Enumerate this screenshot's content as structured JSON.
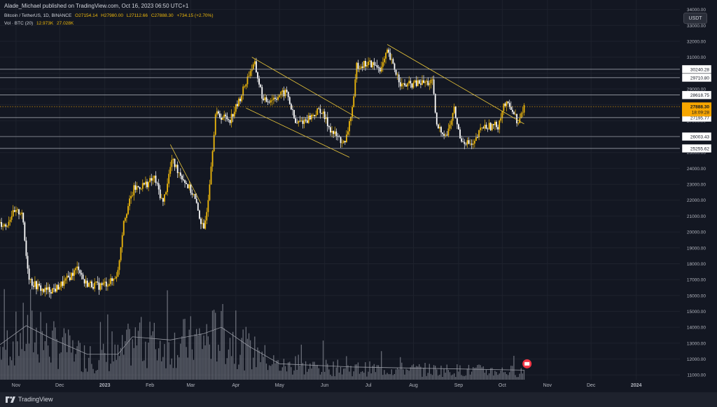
{
  "header": {
    "publisher": "Alade_Michael published on TradingView.com, Oct 16, 2023 06:50 UTC+1",
    "symbol": "Bitcoin / TetherUS, 1D, BINANCE",
    "ohlc": {
      "open": "O27154.14",
      "high": "H27980.00",
      "low": "L27112.66",
      "close": "C27888.30",
      "change": "+734.15 (+2.70%)"
    },
    "volume_label": "Vol · BTC (20)",
    "volume_value": "12.973K",
    "volume_ma": "27.028K"
  },
  "currency_button": "USDT",
  "footer_brand": "TradingView",
  "colors": {
    "background": "#131722",
    "candle_up": "#f0b90b",
    "candle_down": "#ffffff",
    "level_line": "#b2b5be",
    "trend_line": "#e8c53a",
    "price_badge": "#f7a600",
    "volume_bar": "#787b86",
    "volume_ma": "#9598a1"
  },
  "chart_data": {
    "type": "candlestick",
    "ylim": [
      10700,
      34600
    ],
    "y_ticks": [
      "34000.00",
      "33000.00",
      "32000.00",
      "31000.00",
      "30000.00",
      "29000.00",
      "28000.00",
      "27000.00",
      "26000.00",
      "25000.00",
      "24000.00",
      "23000.00",
      "22000.00",
      "21000.00",
      "20000.00",
      "19000.00",
      "18000.00",
      "17000.00",
      "16000.00",
      "15000.00",
      "14000.00",
      "13000.00",
      "12000.00",
      "11000.00"
    ],
    "x_ticks": [
      {
        "label": "Nov",
        "date": "2022-11-01"
      },
      {
        "label": "Dec",
        "date": "2022-12-01"
      },
      {
        "label": "2023",
        "date": "2023-01-01"
      },
      {
        "label": "Feb",
        "date": "2023-02-01"
      },
      {
        "label": "Mar",
        "date": "2023-03-01"
      },
      {
        "label": "Apr",
        "date": "2023-04-01"
      },
      {
        "label": "May",
        "date": "2023-05-01"
      },
      {
        "label": "Jun",
        "date": "2023-06-01"
      },
      {
        "label": "Jul",
        "date": "2023-07-01"
      },
      {
        "label": "Aug",
        "date": "2023-08-01"
      },
      {
        "label": "Sep",
        "date": "2023-09-01"
      },
      {
        "label": "Oct",
        "date": "2023-10-01"
      },
      {
        "label": "Nov",
        "date": "2023-11-01"
      },
      {
        "label": "Dec",
        "date": "2023-12-01"
      },
      {
        "label": "2024",
        "date": "2024-01-01"
      }
    ],
    "xlim": [
      "2022-10-21",
      "2024-01-31"
    ],
    "horizontal_levels": [
      {
        "value": 30240.28,
        "label": "30240.28"
      },
      {
        "value": 29710.8,
        "label": "29710.80"
      },
      {
        "value": 28618.75,
        "label": "28618.75"
      },
      {
        "value": 27195.77,
        "label": "27195.77"
      },
      {
        "value": 26003.43,
        "label": "26003.43"
      },
      {
        "value": 25255.62,
        "label": "25255.62"
      }
    ],
    "current_price": {
      "value": 27888.3,
      "label": "27888.30",
      "countdown": "18:09:28"
    },
    "trend_lines": [
      {
        "from": {
          "date": "2023-02-15",
          "value": 25500
        },
        "to": {
          "date": "2023-03-08",
          "value": 21800
        }
      },
      {
        "from": {
          "date": "2023-04-12",
          "value": 31000
        },
        "to": {
          "date": "2023-06-25",
          "value": 27100
        }
      },
      {
        "from": {
          "date": "2023-04-08",
          "value": 27800
        },
        "to": {
          "date": "2023-06-18",
          "value": 24700
        }
      },
      {
        "from": {
          "date": "2023-07-14",
          "value": 31800
        },
        "to": {
          "date": "2023-10-16",
          "value": 26800
        }
      }
    ],
    "price_path": [
      {
        "date": "2022-10-21",
        "value": 20600
      },
      {
        "date": "2022-10-25",
        "value": 20400
      },
      {
        "date": "2022-10-29",
        "value": 21100
      },
      {
        "date": "2022-11-05",
        "value": 21300
      },
      {
        "date": "2022-11-08",
        "value": 18500
      },
      {
        "date": "2022-11-10",
        "value": 17200
      },
      {
        "date": "2022-11-12",
        "value": 16800
      },
      {
        "date": "2022-11-20",
        "value": 16300
      },
      {
        "date": "2022-11-28",
        "value": 16400
      },
      {
        "date": "2022-12-05",
        "value": 16900
      },
      {
        "date": "2022-12-14",
        "value": 17800
      },
      {
        "date": "2022-12-18",
        "value": 16800
      },
      {
        "date": "2022-12-28",
        "value": 16600
      },
      {
        "date": "2023-01-06",
        "value": 16900
      },
      {
        "date": "2023-01-10",
        "value": 17500
      },
      {
        "date": "2023-01-14",
        "value": 20800
      },
      {
        "date": "2023-01-21",
        "value": 22700
      },
      {
        "date": "2023-01-31",
        "value": 23100
      },
      {
        "date": "2023-02-04",
        "value": 23400
      },
      {
        "date": "2023-02-10",
        "value": 21800
      },
      {
        "date": "2023-02-16",
        "value": 24500
      },
      {
        "date": "2023-02-25",
        "value": 23200
      },
      {
        "date": "2023-03-03",
        "value": 22300
      },
      {
        "date": "2023-03-10",
        "value": 20000
      },
      {
        "date": "2023-03-13",
        "value": 22200
      },
      {
        "date": "2023-03-18",
        "value": 27400
      },
      {
        "date": "2023-03-28",
        "value": 27100
      },
      {
        "date": "2023-04-03",
        "value": 28200
      },
      {
        "date": "2023-04-11",
        "value": 30200
      },
      {
        "date": "2023-04-14",
        "value": 30500
      },
      {
        "date": "2023-04-20",
        "value": 28200
      },
      {
        "date": "2023-04-26",
        "value": 28400
      },
      {
        "date": "2023-05-06",
        "value": 28800
      },
      {
        "date": "2023-05-12",
        "value": 26800
      },
      {
        "date": "2023-05-20",
        "value": 27100
      },
      {
        "date": "2023-05-29",
        "value": 27700
      },
      {
        "date": "2023-06-06",
        "value": 26300
      },
      {
        "date": "2023-06-15",
        "value": 25500
      },
      {
        "date": "2023-06-21",
        "value": 28300
      },
      {
        "date": "2023-06-23",
        "value": 30500
      },
      {
        "date": "2023-07-02",
        "value": 30600
      },
      {
        "date": "2023-07-10",
        "value": 30300
      },
      {
        "date": "2023-07-14",
        "value": 31300
      },
      {
        "date": "2023-07-24",
        "value": 29200
      },
      {
        "date": "2023-08-08",
        "value": 29400
      },
      {
        "date": "2023-08-14",
        "value": 29400
      },
      {
        "date": "2023-08-17",
        "value": 26600
      },
      {
        "date": "2023-08-24",
        "value": 26100
      },
      {
        "date": "2023-08-29",
        "value": 27700
      },
      {
        "date": "2023-09-02",
        "value": 25900
      },
      {
        "date": "2023-09-11",
        "value": 25400
      },
      {
        "date": "2023-09-17",
        "value": 26600
      },
      {
        "date": "2023-09-28",
        "value": 26700
      },
      {
        "date": "2023-10-02",
        "value": 28000
      },
      {
        "date": "2023-10-07",
        "value": 27900
      },
      {
        "date": "2023-10-12",
        "value": 26800
      },
      {
        "date": "2023-10-16",
        "value": 27888
      }
    ],
    "volume_ma_path": [
      {
        "date": "2022-10-21",
        "value": 12900
      },
      {
        "date": "2022-11-08",
        "value": 14100
      },
      {
        "date": "2022-11-25",
        "value": 13300
      },
      {
        "date": "2022-12-20",
        "value": 12300
      },
      {
        "date": "2023-01-10",
        "value": 12300
      },
      {
        "date": "2023-01-20",
        "value": 13400
      },
      {
        "date": "2023-02-15",
        "value": 13200
      },
      {
        "date": "2023-03-10",
        "value": 13600
      },
      {
        "date": "2023-03-22",
        "value": 14000
      },
      {
        "date": "2023-04-10",
        "value": 12800
      },
      {
        "date": "2023-05-01",
        "value": 11700
      },
      {
        "date": "2023-06-20",
        "value": 11500
      },
      {
        "date": "2023-10-16",
        "value": 11300
      }
    ]
  }
}
